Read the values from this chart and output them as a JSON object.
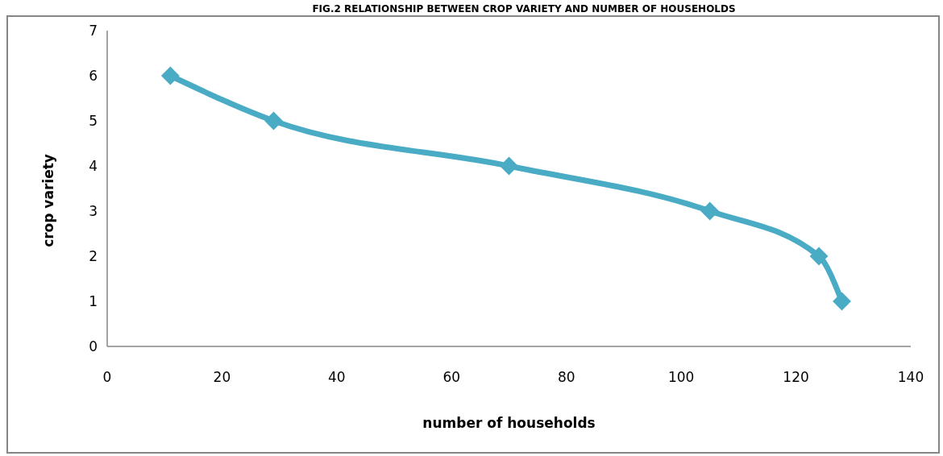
{
  "chart_data": {
    "type": "line",
    "title": "FIG.2 RELATIONSHIP  BETWEEN CROP VARIETY AND NUMBER OF HOUSEHOLDS",
    "xlabel": "number of households",
    "ylabel": "crop variety",
    "x": [
      11,
      29,
      70,
      105,
      124,
      128
    ],
    "series": [
      {
        "color": "#4aabc5",
        "values": [
          6,
          5,
          4,
          3,
          2,
          1
        ]
      }
    ],
    "xlim": [
      0,
      140
    ],
    "xticks": [
      0,
      20,
      40,
      60,
      80,
      100,
      120,
      140
    ],
    "ylim": [
      0,
      7
    ],
    "yticks": [
      0,
      1,
      2,
      3,
      4,
      5,
      6,
      7
    ],
    "marker": "diamond"
  }
}
